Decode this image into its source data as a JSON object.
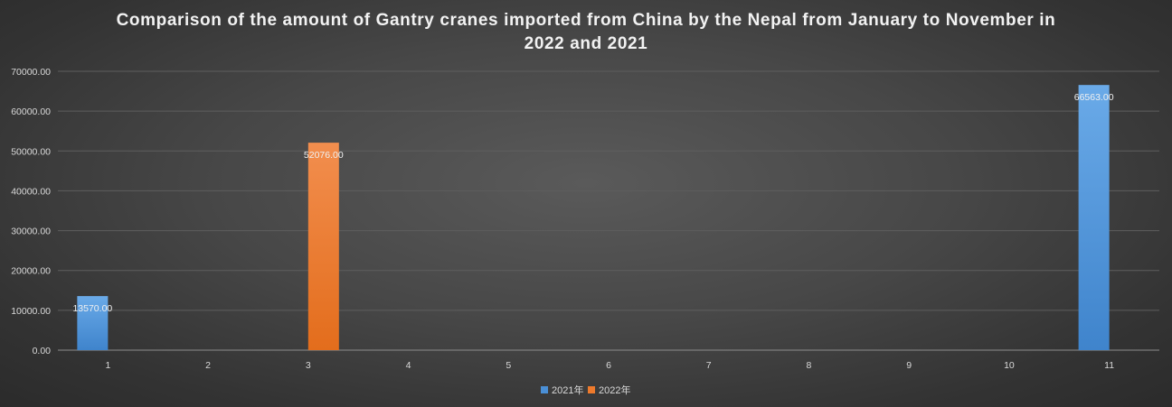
{
  "chart_data": {
    "type": "bar",
    "title": "Comparison of the amount of Gantry cranes imported from China by the Nepal from January to November in 2022 and 2021",
    "categories": [
      "1",
      "2",
      "3",
      "4",
      "5",
      "6",
      "7",
      "8",
      "9",
      "10",
      "11"
    ],
    "series": [
      {
        "name": "2021年",
        "color": "#4a8fd6",
        "values": [
          13570.0,
          0,
          0,
          0,
          0,
          0,
          0,
          0,
          0,
          0,
          66563.0
        ]
      },
      {
        "name": "2022年",
        "color": "#ee7a2c",
        "values": [
          0,
          0,
          52076.0,
          0,
          0,
          0,
          0,
          0,
          0,
          0,
          0
        ]
      }
    ],
    "data_labels": [
      {
        "series": "2021年",
        "category": "1",
        "text": "13570.00"
      },
      {
        "series": "2022年",
        "category": "3",
        "text": "52076.00"
      },
      {
        "series": "2021年",
        "category": "11",
        "text": "66563.00"
      }
    ],
    "yticks": [
      "0.00",
      "10000.00",
      "20000.00",
      "30000.00",
      "40000.00",
      "50000.00",
      "60000.00",
      "70000.00"
    ],
    "ylim": [
      0,
      70000
    ],
    "xlabel": "",
    "ylabel": "",
    "grid": true,
    "legend_position": "bottom"
  }
}
